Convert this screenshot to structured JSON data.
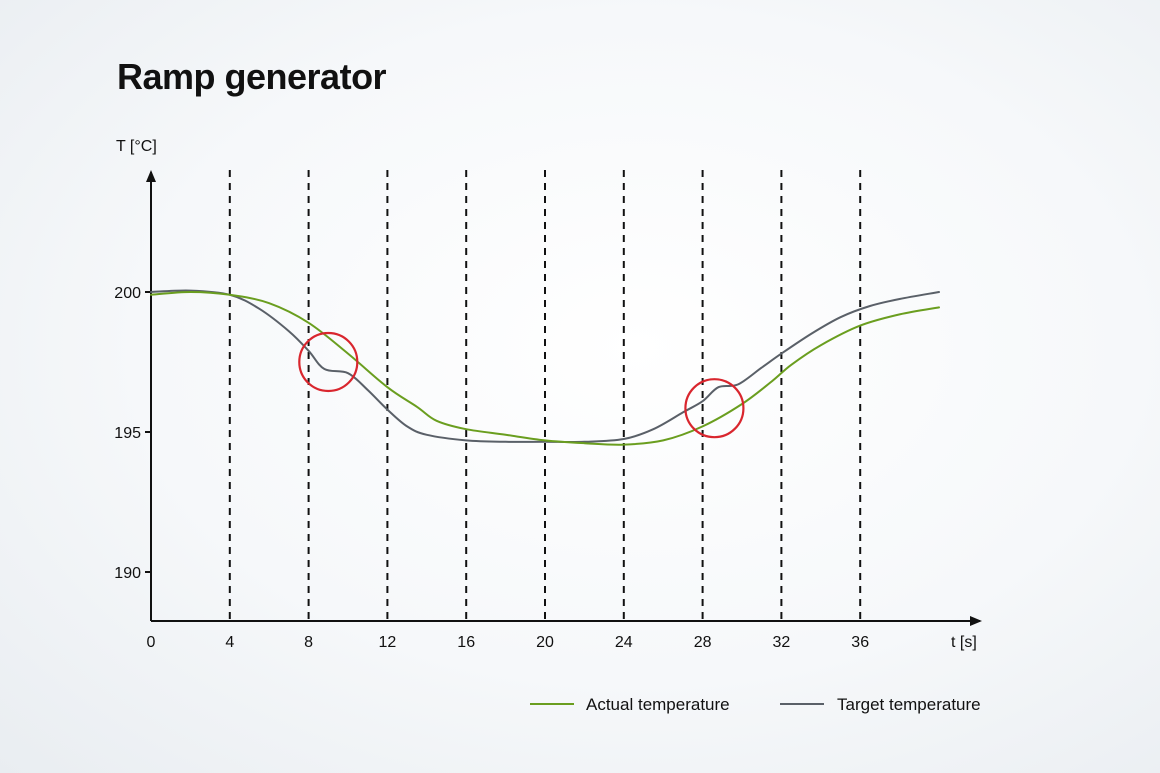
{
  "title": "Ramp generator",
  "chart_data": {
    "type": "line",
    "title": "Ramp generator",
    "ylabel": "T [°C]",
    "xlabel": "t [s]",
    "x_ticks": [
      0,
      4,
      8,
      12,
      16,
      20,
      24,
      28,
      32,
      36
    ],
    "y_ticks": [
      190,
      195,
      200
    ],
    "vertical_dashed_lines_at": [
      4,
      8,
      12,
      16,
      20,
      24,
      28,
      32,
      36
    ],
    "xlim": [
      0,
      42
    ],
    "ylim": [
      188.2,
      204.2
    ],
    "grid": false,
    "legend_position": "bottom-right",
    "series": [
      {
        "name": "Actual temperature",
        "color": "#6a9e1f",
        "points": [
          [
            0,
            199.9
          ],
          [
            2,
            200.0
          ],
          [
            4,
            199.9
          ],
          [
            6,
            199.6
          ],
          [
            8,
            198.9
          ],
          [
            10,
            197.8
          ],
          [
            12,
            196.6
          ],
          [
            13.5,
            195.9
          ],
          [
            14.5,
            195.4
          ],
          [
            16,
            195.1
          ],
          [
            18,
            194.9
          ],
          [
            20,
            194.7
          ],
          [
            22,
            194.6
          ],
          [
            24,
            194.55
          ],
          [
            26,
            194.7
          ],
          [
            28,
            195.2
          ],
          [
            30,
            196.0
          ],
          [
            31.5,
            196.8
          ],
          [
            32.5,
            197.4
          ],
          [
            34,
            198.1
          ],
          [
            36,
            198.8
          ],
          [
            38,
            199.2
          ],
          [
            40,
            199.45
          ]
        ]
      },
      {
        "name": "Target temperature",
        "color": "#5a6068",
        "points": [
          [
            0,
            200.0
          ],
          [
            2,
            200.05
          ],
          [
            4,
            199.9
          ],
          [
            5.5,
            199.4
          ],
          [
            7,
            198.6
          ],
          [
            8,
            197.9
          ],
          [
            8.8,
            197.25
          ],
          [
            10,
            197.1
          ],
          [
            11,
            196.5
          ],
          [
            12,
            195.8
          ],
          [
            13,
            195.2
          ],
          [
            14,
            194.9
          ],
          [
            16,
            194.7
          ],
          [
            18,
            194.65
          ],
          [
            20,
            194.65
          ],
          [
            22,
            194.65
          ],
          [
            24,
            194.75
          ],
          [
            25.5,
            195.1
          ],
          [
            27,
            195.7
          ],
          [
            28,
            196.1
          ],
          [
            28.8,
            196.6
          ],
          [
            29.8,
            196.7
          ],
          [
            31,
            197.3
          ],
          [
            32,
            197.8
          ],
          [
            33.5,
            198.5
          ],
          [
            35,
            199.1
          ],
          [
            36.5,
            199.5
          ],
          [
            38,
            199.75
          ],
          [
            40,
            200.0
          ]
        ]
      }
    ],
    "annotations": [
      {
        "type": "circle",
        "color": "#d9262e",
        "x": 9.0,
        "y": 197.5
      },
      {
        "type": "circle",
        "color": "#d9262e",
        "x": 28.6,
        "y": 195.85
      }
    ]
  }
}
